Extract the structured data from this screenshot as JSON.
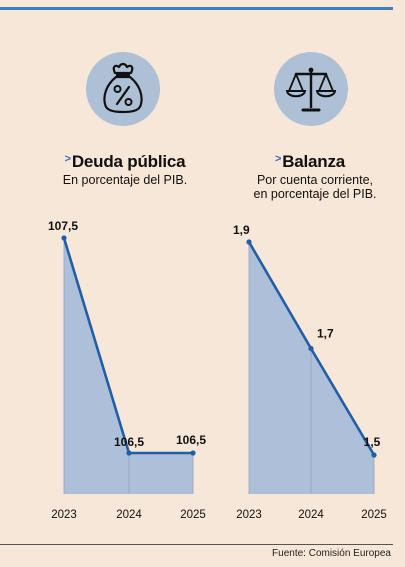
{
  "colors": {
    "accent": "#2f6eb5",
    "area": "#aebfd9",
    "line": "#1f5fa8",
    "background": "#f7e7d9"
  },
  "panels": [
    {
      "icon": "percent-bag-icon",
      "title": "Deuda pública",
      "subtitle_lines": [
        "En porcentaje del PIB."
      ]
    },
    {
      "icon": "balance-scale-icon",
      "title": "Balanza",
      "subtitle_lines": [
        "Por cuenta corriente,",
        "en porcentaje del PIB."
      ]
    }
  ],
  "chart_data": [
    {
      "type": "area",
      "title": "Deuda pública",
      "subtitle": "En porcentaje del PIB.",
      "categories": [
        "2023",
        "2024",
        "2025"
      ],
      "values": [
        107.5,
        106.5,
        106.5
      ],
      "labels": [
        "107,5",
        "106,5",
        "106,5"
      ]
    },
    {
      "type": "area",
      "title": "Balanza",
      "subtitle": "Por cuenta corriente, en porcentaje del PIB.",
      "categories": [
        "2023",
        "2024",
        "2025"
      ],
      "values": [
        1.9,
        1.7,
        1.5
      ],
      "labels": [
        "1,9",
        "1,7",
        "1,5"
      ]
    }
  ],
  "source": "Fuente: Comisión Europea"
}
